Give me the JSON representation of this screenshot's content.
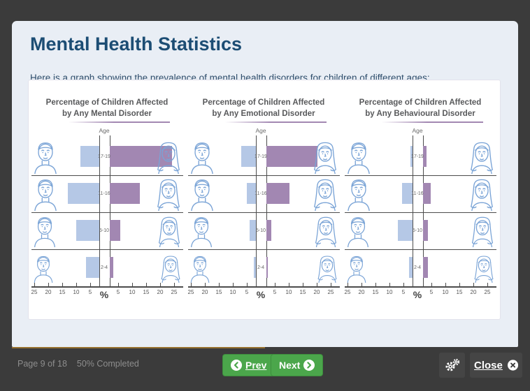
{
  "page": {
    "title": "Mental Health Statistics",
    "subtitle": "Here is a graph showing the prevalence of mental health disorders for children of different ages:"
  },
  "colors": {
    "frame_bg": "#3b3b3b",
    "card_bg": "#e9eef5",
    "title_text": "#1c4d74",
    "male_bar": "#b5c8e6",
    "female_bar": "#a287b2",
    "icon_line": "#79a3d6",
    "nav_button_green": "#4ba64b",
    "progress_line": "#96702f"
  },
  "chart_data": [
    {
      "type": "bar",
      "orientation": "butterfly",
      "title": "Percentage of Children Affected by Any Mental Disorder",
      "title_line1": "Percentage of Children Affected",
      "title_line2": "by Any Mental Disorder",
      "center_axis_label": "Age",
      "unit_label": "%",
      "categories": [
        "17-19",
        "11-16",
        "5-10",
        "2-4"
      ],
      "ticks": [
        5,
        10,
        15,
        20,
        25
      ],
      "xlim": [
        0,
        25
      ],
      "series": [
        {
          "name": "Male",
          "side": "left",
          "color": "#b5c8e6",
          "values": [
            8.5,
            13,
            10,
            6.5
          ]
        },
        {
          "name": "Female",
          "side": "right",
          "color": "#a287b2",
          "values": [
            24,
            12.5,
            5.5,
            3
          ]
        }
      ]
    },
    {
      "type": "bar",
      "orientation": "butterfly",
      "title": "Percentage of Children Affected by Any Emotional Disorder",
      "title_line1": "Percentage of Children Affected",
      "title_line2": "by Any Emotional Disorder",
      "center_axis_label": "Age",
      "unit_label": "%",
      "categories": [
        "17-19",
        "11-16",
        "5-10",
        "2-4"
      ],
      "ticks": [
        5,
        10,
        15,
        20,
        25
      ],
      "xlim": [
        0,
        25
      ],
      "series": [
        {
          "name": "Male",
          "side": "left",
          "color": "#b5c8e6",
          "values": [
            7,
            5,
            4,
            2.5
          ]
        },
        {
          "name": "Female",
          "side": "right",
          "color": "#a287b2",
          "values": [
            20,
            10,
            3.5,
            2
          ]
        }
      ]
    },
    {
      "type": "bar",
      "orientation": "butterfly",
      "title": "Percentage of Children Affected by Any Behavioural Disorder",
      "title_line1": "Percentage of Children Affected",
      "title_line2": "by Any Behavioural Disorder",
      "center_axis_label": "Age",
      "unit_label": "%",
      "categories": [
        "17-19",
        "11-16",
        "5-10",
        "2-4"
      ],
      "ticks": [
        5,
        10,
        15,
        20,
        25
      ],
      "xlim": [
        0,
        25
      ],
      "series": [
        {
          "name": "Male",
          "side": "left",
          "color": "#b5c8e6",
          "values": [
            2.5,
            5.5,
            7,
            3
          ]
        },
        {
          "name": "Female",
          "side": "right",
          "color": "#a287b2",
          "values": [
            3,
            4.5,
            3.5,
            3.5
          ]
        }
      ]
    }
  ],
  "footer": {
    "page_status": "Page 9 of 18",
    "completion_status": "50% Completed",
    "progress_percent": 50,
    "prev_label": "Prev",
    "next_label": "Next",
    "close_label": "Close",
    "icons": {
      "prev": "chevron-left-circle-icon",
      "next": "chevron-right-circle-icon",
      "settings": "cogs-icon",
      "close": "x-circle-icon"
    }
  }
}
